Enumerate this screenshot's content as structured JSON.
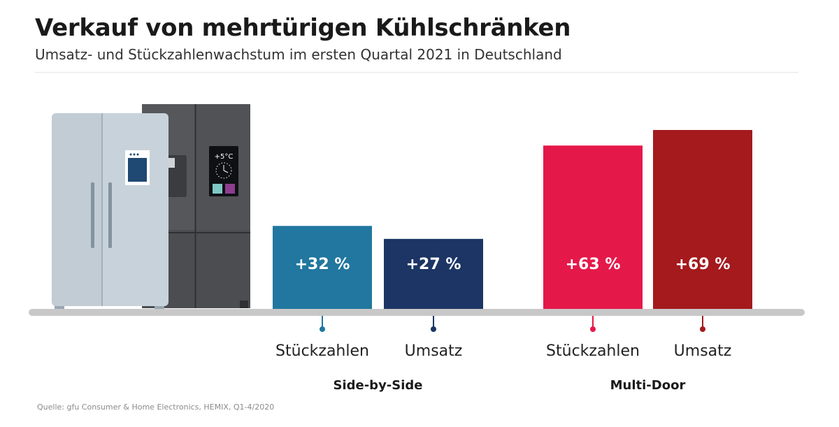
{
  "title": "Verkauf von mehrtürigen Kühlschränken",
  "subtitle": "Umsatz- und Stückzahlenwachstum im ersten Quartal 2021 in Deutschland",
  "source": "Quelle: gfu Consumer & Home Electronics, HEMIX, Q1-4/2020",
  "fridge_display": "+5°C",
  "chart_data": {
    "type": "bar",
    "unit": "%",
    "groups": [
      {
        "name": "Side-by-Side",
        "bars": [
          {
            "label": "Stückzahlen",
            "value": 32,
            "display": "+32 %",
            "color": "#21779f"
          },
          {
            "label": "Umsatz",
            "value": 27,
            "display": "+27 %",
            "color": "#1c3564"
          }
        ]
      },
      {
        "name": "Multi-Door",
        "bars": [
          {
            "label": "Stückzahlen",
            "value": 63,
            "display": "+63 %",
            "color": "#e5184a"
          },
          {
            "label": "Umsatz",
            "value": 69,
            "display": "+69 %",
            "color": "#a41a1d"
          }
        ]
      }
    ],
    "baseline_color": "#c8c8c8"
  }
}
